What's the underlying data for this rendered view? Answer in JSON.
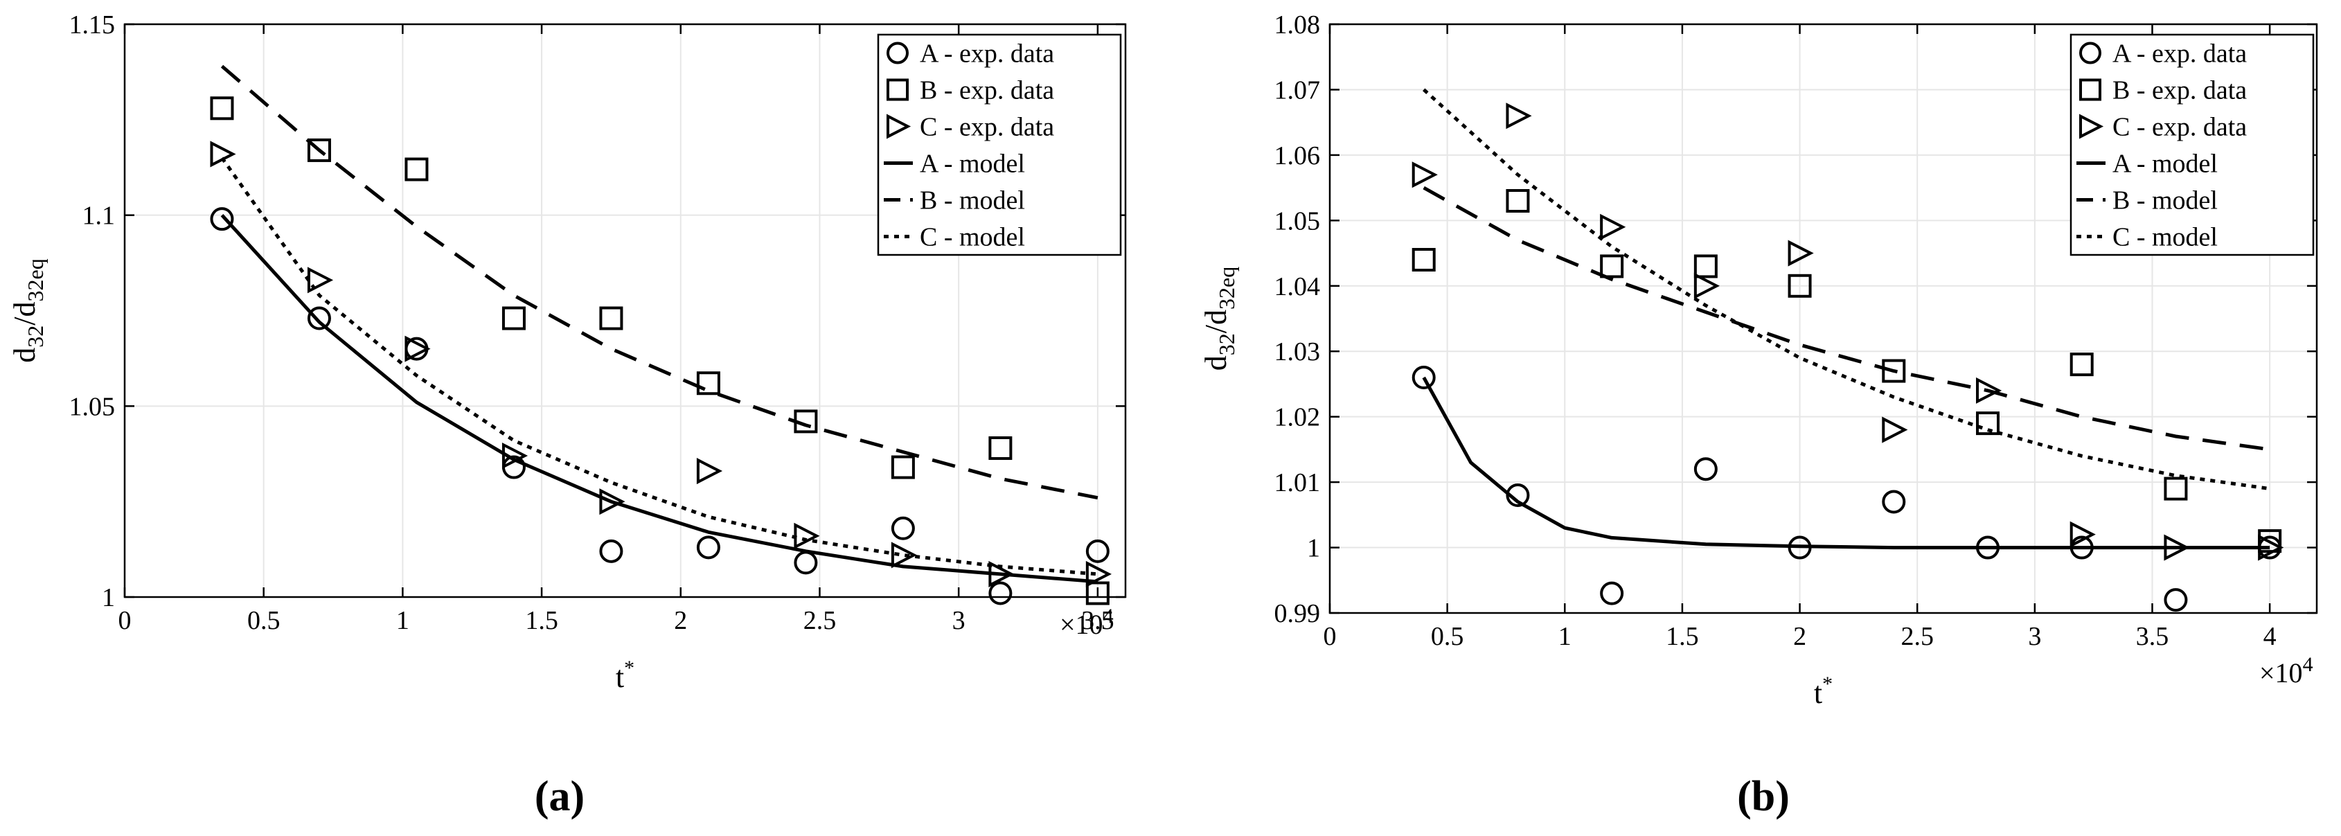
{
  "chart_data": [
    {
      "type": "scatter",
      "panel_label": "(a)",
      "xlabel": "t",
      "xlabel_sup": "*",
      "ylabel_main": "d",
      "ylabel_sub1": "32",
      "ylabel_mid": "/d",
      "ylabel_sub2": "32eq",
      "xlim": [
        0,
        3.6
      ],
      "ylim": [
        1.0,
        1.15
      ],
      "xticks": [
        0,
        0.5,
        1,
        1.5,
        2,
        2.5,
        3,
        3.5
      ],
      "xtick_labels": [
        "0",
        "0.5",
        "1",
        "1.5",
        "2",
        "2.5",
        "3",
        "3.5"
      ],
      "yticks": [
        1.0,
        1.05,
        1.1,
        1.15
      ],
      "ytick_labels": [
        "1",
        "1.05",
        "1.1",
        "1.15"
      ],
      "x_multiplier_prefix": "×10",
      "x_multiplier_exp": "4",
      "grid": true,
      "legend_position": "top-right",
      "series": [
        {
          "name": "A - exp. data",
          "kind": "marker",
          "marker": "circle",
          "x": [
            0.35,
            0.7,
            1.05,
            1.4,
            1.75,
            2.1,
            2.45,
            2.8,
            3.15,
            3.5
          ],
          "y": [
            1.099,
            1.073,
            1.065,
            1.034,
            1.012,
            1.013,
            1.009,
            1.018,
            1.001,
            1.012
          ]
        },
        {
          "name": "B - exp. data",
          "kind": "marker",
          "marker": "square",
          "x": [
            0.35,
            0.7,
            1.05,
            1.4,
            1.75,
            2.1,
            2.45,
            2.8,
            3.15,
            3.5
          ],
          "y": [
            1.128,
            1.117,
            1.112,
            1.073,
            1.073,
            1.056,
            1.046,
            1.034,
            1.039,
            1.001
          ]
        },
        {
          "name": "C - exp. data",
          "kind": "marker",
          "marker": "triangle",
          "x": [
            0.35,
            0.7,
            1.05,
            1.4,
            1.75,
            2.1,
            2.45,
            2.8,
            3.15,
            3.5
          ],
          "y": [
            1.116,
            1.083,
            1.065,
            1.037,
            1.025,
            1.033,
            1.016,
            1.011,
            1.006,
            1.006
          ]
        },
        {
          "name": "A - model",
          "kind": "line",
          "dash": "solid",
          "x": [
            0.35,
            0.7,
            1.05,
            1.4,
            1.75,
            2.1,
            2.45,
            2.8,
            3.15,
            3.5
          ],
          "y": [
            1.1,
            1.072,
            1.051,
            1.036,
            1.025,
            1.017,
            1.012,
            1.008,
            1.006,
            1.004
          ]
        },
        {
          "name": "B - model",
          "kind": "line",
          "dash": "dashed",
          "x": [
            0.35,
            0.7,
            1.05,
            1.4,
            1.75,
            2.1,
            2.45,
            2.8,
            3.15,
            3.5
          ],
          "y": [
            1.139,
            1.117,
            1.097,
            1.079,
            1.065,
            1.054,
            1.045,
            1.038,
            1.031,
            1.026
          ]
        },
        {
          "name": "C - model",
          "kind": "line",
          "dash": "dotted",
          "x": [
            0.35,
            0.7,
            1.05,
            1.4,
            1.75,
            2.1,
            2.45,
            2.8,
            3.15,
            3.5
          ],
          "y": [
            1.115,
            1.079,
            1.058,
            1.041,
            1.03,
            1.021,
            1.015,
            1.011,
            1.008,
            1.006
          ]
        }
      ]
    },
    {
      "type": "scatter",
      "panel_label": "(b)",
      "xlabel": "t",
      "xlabel_sup": "*",
      "ylabel_main": "d",
      "ylabel_sub1": "32",
      "ylabel_mid": "/d",
      "ylabel_sub2": "32eq",
      "xlim": [
        0,
        4.2
      ],
      "ylim": [
        0.99,
        1.08
      ],
      "xticks": [
        0,
        0.5,
        1,
        1.5,
        2,
        2.5,
        3,
        3.5,
        4
      ],
      "xtick_labels": [
        "0",
        "0.5",
        "1",
        "1.5",
        "2",
        "2.5",
        "3",
        "3.5",
        "4"
      ],
      "yticks": [
        0.99,
        1.0,
        1.01,
        1.02,
        1.03,
        1.04,
        1.05,
        1.06,
        1.07,
        1.08
      ],
      "ytick_labels": [
        "0.99",
        "1",
        "1.01",
        "1.02",
        "1.03",
        "1.04",
        "1.05",
        "1.06",
        "1.07",
        "1.08"
      ],
      "x_multiplier_prefix": "×10",
      "x_multiplier_exp": "4",
      "grid": true,
      "legend_position": "top-right",
      "series": [
        {
          "name": "A - exp. data",
          "kind": "marker",
          "marker": "circle",
          "x": [
            0.4,
            0.8,
            1.2,
            1.6,
            2.0,
            2.4,
            2.8,
            3.2,
            3.6,
            4.0
          ],
          "y": [
            1.026,
            1.008,
            0.993,
            1.012,
            1.0,
            1.007,
            1.0,
            1.0,
            0.992,
            1.0
          ]
        },
        {
          "name": "B - exp. data",
          "kind": "marker",
          "marker": "square",
          "x": [
            0.4,
            0.8,
            1.2,
            1.6,
            2.0,
            2.4,
            2.8,
            3.2,
            3.6,
            4.0
          ],
          "y": [
            1.044,
            1.053,
            1.043,
            1.043,
            1.04,
            1.027,
            1.019,
            1.028,
            1.009,
            1.001
          ]
        },
        {
          "name": "C - exp. data",
          "kind": "marker",
          "marker": "triangle",
          "x": [
            0.4,
            0.8,
            1.2,
            1.6,
            2.0,
            2.4,
            2.8,
            3.2,
            3.6,
            4.0
          ],
          "y": [
            1.057,
            1.066,
            1.049,
            1.04,
            1.045,
            1.018,
            1.024,
            1.002,
            1.0,
            1.0
          ]
        },
        {
          "name": "A - model",
          "kind": "line",
          "dash": "solid",
          "x": [
            0.4,
            0.6,
            0.8,
            1.0,
            1.2,
            1.6,
            2.0,
            2.4,
            2.8,
            3.2,
            3.6,
            4.0
          ],
          "y": [
            1.026,
            1.013,
            1.007,
            1.003,
            1.0015,
            1.0005,
            1.0002,
            1.0,
            1.0,
            1.0,
            1.0,
            1.0
          ]
        },
        {
          "name": "B - model",
          "kind": "line",
          "dash": "dashed",
          "x": [
            0.4,
            0.8,
            1.2,
            1.6,
            2.0,
            2.4,
            2.8,
            3.2,
            3.6,
            4.0
          ],
          "y": [
            1.055,
            1.047,
            1.041,
            1.036,
            1.031,
            1.027,
            1.024,
            1.02,
            1.017,
            1.015
          ]
        },
        {
          "name": "C - model",
          "kind": "line",
          "dash": "dotted",
          "x": [
            0.4,
            0.8,
            1.2,
            1.6,
            2.0,
            2.4,
            2.8,
            3.2,
            3.6,
            4.0
          ],
          "y": [
            1.07,
            1.057,
            1.046,
            1.037,
            1.029,
            1.023,
            1.018,
            1.014,
            1.011,
            1.009
          ]
        }
      ]
    }
  ]
}
